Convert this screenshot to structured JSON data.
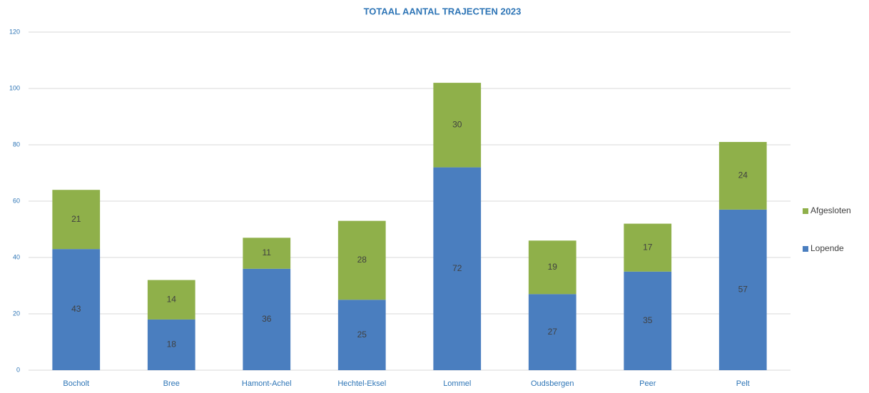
{
  "chart_data": {
    "type": "bar",
    "stacked": true,
    "title": "TOTAAL AANTAL TRAJECTEN 2023",
    "categories": [
      "Bocholt",
      "Bree",
      "Hamont-Achel",
      "Hechtel-Eksel",
      "Lommel",
      "Oudsbergen",
      "Peer",
      "Pelt"
    ],
    "series": [
      {
        "name": "Lopende",
        "color": "#4a7ebf",
        "values": [
          43,
          18,
          36,
          25,
          72,
          27,
          35,
          57
        ]
      },
      {
        "name": "Afgesloten",
        "color": "#8fb04a",
        "values": [
          21,
          14,
          11,
          28,
          30,
          19,
          17,
          24
        ]
      }
    ],
    "ylim": [
      0,
      120
    ],
    "yticks": [
      0,
      20,
      40,
      60,
      80,
      100,
      120
    ],
    "grid": true,
    "legend": "right"
  }
}
